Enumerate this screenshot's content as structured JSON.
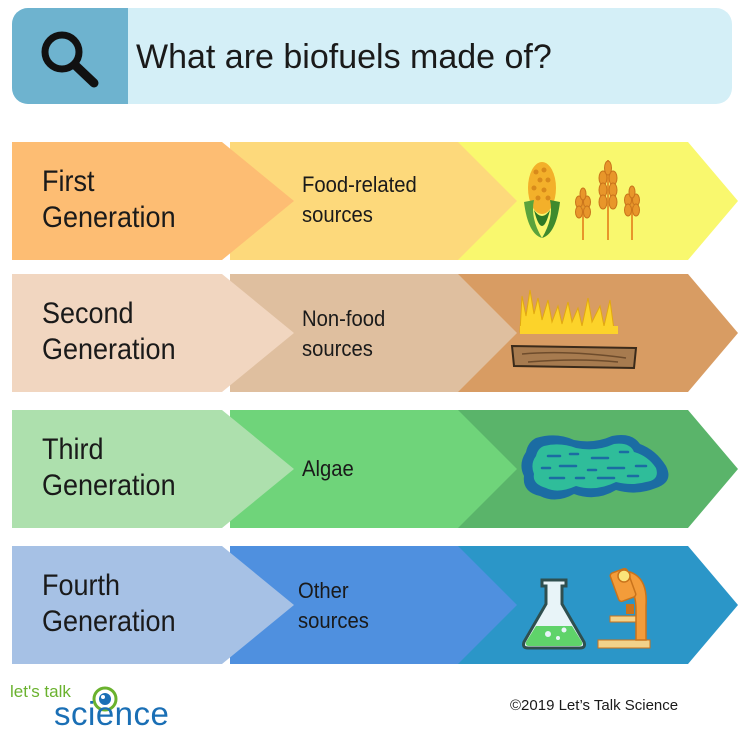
{
  "header": {
    "title": "What are biofuels made of?",
    "icon": "magnifier-icon"
  },
  "rows": [
    {
      "generation": [
        "First",
        "Generation"
      ],
      "source": [
        "Food-related",
        "sources"
      ],
      "illustration": "corn-and-wheat",
      "colors": {
        "label": "#fdbd73",
        "source": "#fdd97b",
        "illustration": "#f9f86e"
      }
    },
    {
      "generation": [
        "Second",
        "Generation"
      ],
      "source": [
        "Non-food",
        "sources"
      ],
      "illustration": "grass-and-wood",
      "colors": {
        "label": "#f1d6c0",
        "source": "#dfbf9f",
        "illustration": "#d89c63"
      }
    },
    {
      "generation": [
        "Third",
        "Generation"
      ],
      "source": [
        "Algae"
      ],
      "illustration": "algae-pond",
      "colors": {
        "label": "#ade0ad",
        "source": "#6fd47a",
        "illustration": "#5ab46a"
      }
    },
    {
      "generation": [
        "Fourth",
        "Generation"
      ],
      "source": [
        "Other",
        "sources"
      ],
      "illustration": "lab-flask-and-microscope",
      "colors": {
        "label": "#a6c1e5",
        "source": "#4f90df",
        "illustration": "#2b96c8"
      }
    }
  ],
  "footer": {
    "logo_top": "let's talk",
    "logo_bottom": "science",
    "copyright": "©2019 Let’s Talk Science"
  }
}
